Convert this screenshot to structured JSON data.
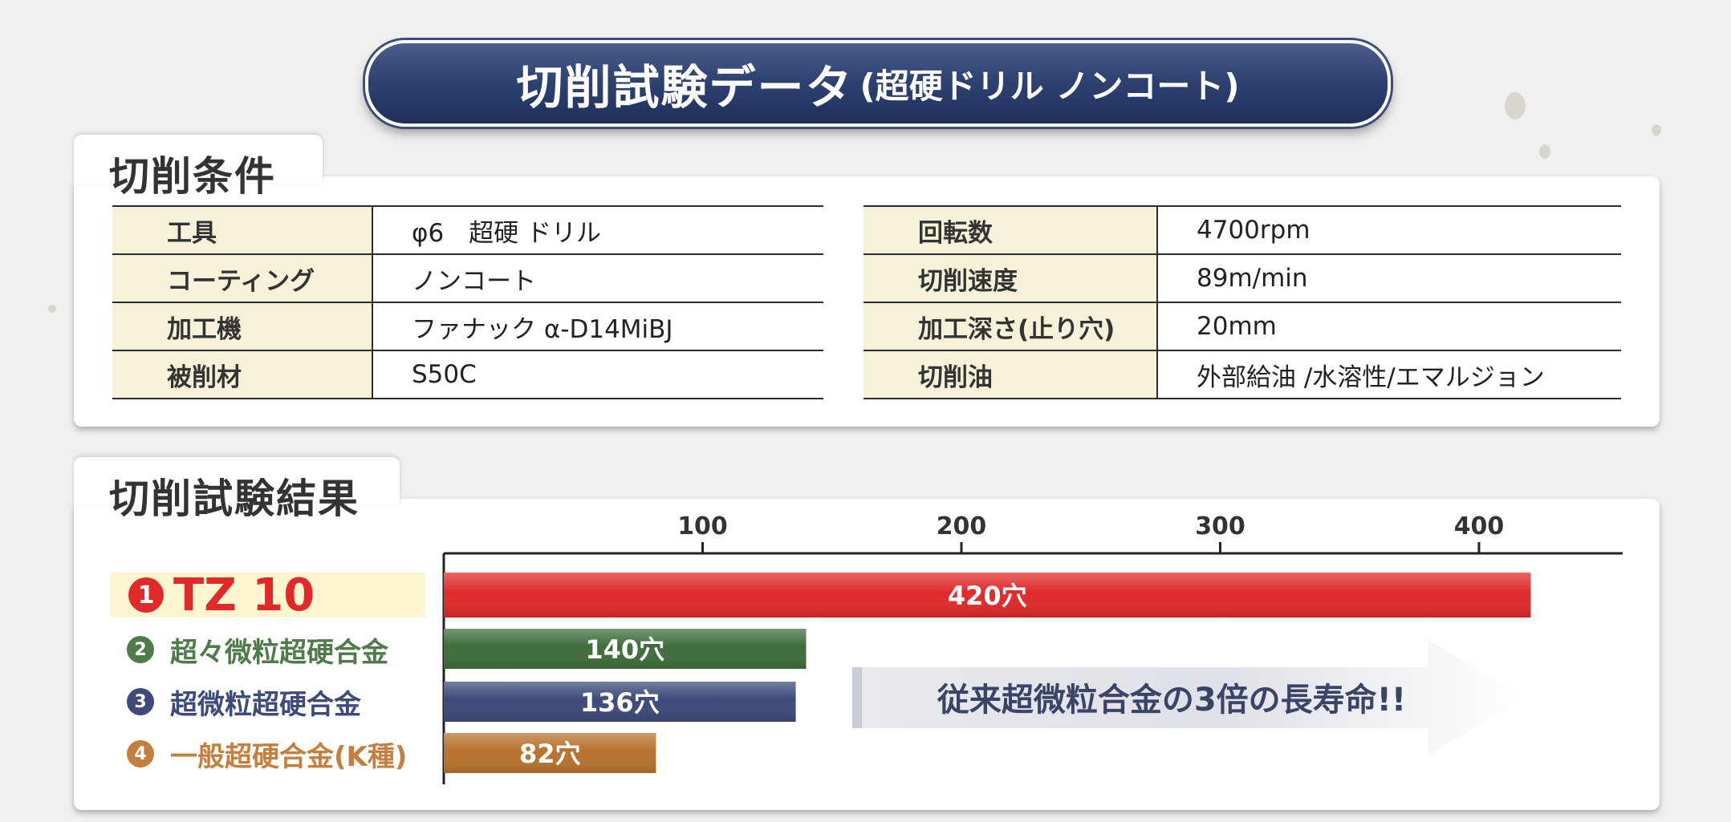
{
  "header": {
    "title": "切削試験データ",
    "subtitle": "(超硬ドリル ノンコート)"
  },
  "conditions": {
    "title": "切削条件",
    "left": [
      {
        "label": "工具",
        "value": "φ6　超硬 ドリル"
      },
      {
        "label": "コーティング",
        "value": "ノンコート"
      },
      {
        "label": "加工機",
        "value": "ファナック α-D14MiBJ"
      },
      {
        "label": "被削材",
        "value": "S50C"
      }
    ],
    "right": [
      {
        "label": "回転数",
        "value": "4700rpm"
      },
      {
        "label": "切削速度",
        "value": "89m/min"
      },
      {
        "label": "加工深さ(止り穴)",
        "value": "20mm"
      },
      {
        "label": "切削油",
        "value": "外部給油 /水溶性/エマルジョン"
      }
    ]
  },
  "results": {
    "title": "切削試験結果",
    "categories": [
      {
        "num": "1",
        "name": "TZ 10"
      },
      {
        "num": "2",
        "name": "超々微粒超硬合金"
      },
      {
        "num": "3",
        "name": "超微粒超硬合金"
      },
      {
        "num": "4",
        "name": "一般超硬合金(K種)"
      }
    ],
    "callout": "従来超微粒合金の3倍の長寿命!!"
  },
  "colors": {
    "tz10": "#e02a2a",
    "series2": "#3f6d3c",
    "series3": "#3d4a7a",
    "series4": "#b8732e",
    "tz10_highlight": "#fbf5d0",
    "header": "#2f4373"
  },
  "chart_data": {
    "type": "bar",
    "orientation": "horizontal",
    "categories": [
      "TZ 10",
      "超々微粒超硬合金",
      "超微粒超硬合金",
      "一般超硬合金(K種)"
    ],
    "values": [
      420,
      140,
      136,
      82
    ],
    "value_labels": [
      "420穴",
      "140穴",
      "136穴",
      "82穴"
    ],
    "xticks": [
      100,
      200,
      300,
      400
    ],
    "xlim": [
      0,
      455
    ],
    "grid": false,
    "title": "切削試験結果"
  }
}
